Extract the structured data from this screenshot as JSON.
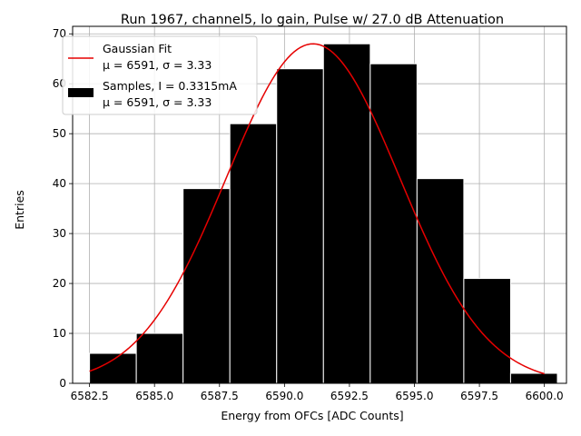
{
  "chart_data": {
    "type": "bar",
    "title": "Run 1967, channel5, lo gain, Pulse w/ 27.0 dB Attenuation",
    "xlabel": "Energy from OFCs [ADC Counts]",
    "ylabel": "Entries",
    "xlim": [
      6581.85,
      6600.85
    ],
    "ylim": [
      0,
      71.5
    ],
    "grid": true,
    "legend_position": "top-left",
    "x_ticks": [
      {
        "value": 6582.5,
        "label": "6582.5"
      },
      {
        "value": 6585.0,
        "label": "6585.0"
      },
      {
        "value": 6587.5,
        "label": "6587.5"
      },
      {
        "value": 6590.0,
        "label": "6590.0"
      },
      {
        "value": 6592.5,
        "label": "6592.5"
      },
      {
        "value": 6595.0,
        "label": "6595.0"
      },
      {
        "value": 6597.5,
        "label": "6597.5"
      },
      {
        "value": 6600.0,
        "label": "6600.0"
      }
    ],
    "y_ticks": [
      {
        "value": 0,
        "label": "0"
      },
      {
        "value": 10,
        "label": "10"
      },
      {
        "value": 20,
        "label": "20"
      },
      {
        "value": 30,
        "label": "30"
      },
      {
        "value": 40,
        "label": "40"
      },
      {
        "value": 50,
        "label": "50"
      },
      {
        "value": 60,
        "label": "60"
      },
      {
        "value": 70,
        "label": "70"
      }
    ],
    "histogram": {
      "name": "Samples, I = 0.3315mA",
      "stats_label": "μ = 6591, σ = 3.33",
      "color": "#000000",
      "edge_color": "#ffffff",
      "bin_edges": [
        6582.5,
        6584.3,
        6586.1,
        6587.9,
        6589.7,
        6591.5,
        6593.3,
        6595.1,
        6596.9,
        6598.7,
        6600.5
      ],
      "counts": [
        6,
        10,
        39,
        52,
        63,
        68,
        64,
        41,
        21,
        2
      ]
    },
    "fit": {
      "name": "Gaussian Fit",
      "stats_label": "μ = 6591, σ = 3.33",
      "color": "#e60000",
      "mu": 6591.1,
      "sigma": 3.33,
      "amplitude": 68,
      "x_range": [
        6582.5,
        6600.0
      ]
    }
  }
}
